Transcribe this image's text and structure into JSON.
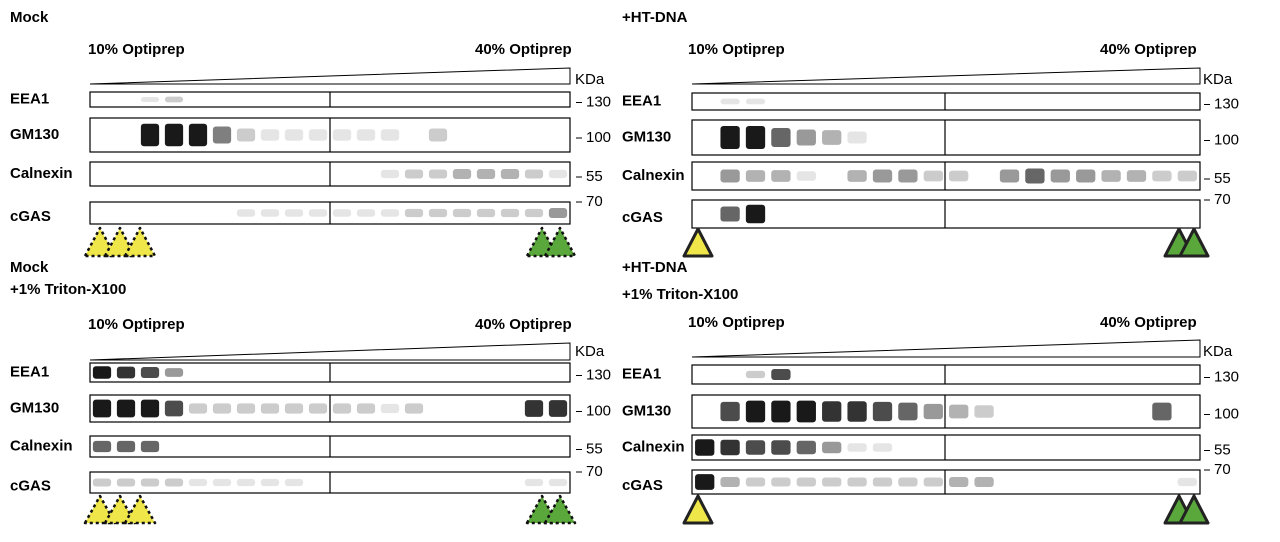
{
  "panels": [
    {
      "title": [
        "Mock"
      ],
      "low": "10% Optiprep",
      "high": "40% Optiprep",
      "unit": "KDa",
      "rows": [
        {
          "label": "EEA1",
          "marker": "130"
        },
        {
          "label": "GM130",
          "marker": "100"
        },
        {
          "label": "Calnexin",
          "marker": "55"
        },
        {
          "label": "cGAS",
          "marker": "70"
        }
      ]
    },
    {
      "title": [
        "+HT-DNA"
      ],
      "low": "10% Optiprep",
      "high": "40% Optiprep",
      "unit": "KDa",
      "rows": [
        {
          "label": "EEA1",
          "marker": "130"
        },
        {
          "label": "GM130",
          "marker": "100"
        },
        {
          "label": "Calnexin",
          "marker": "55"
        },
        {
          "label": "cGAS",
          "marker": "70"
        }
      ]
    },
    {
      "title": [
        "Mock",
        "+1% Triton-X100"
      ],
      "low": "10% Optiprep",
      "high": "40% Optiprep",
      "unit": "KDa",
      "rows": [
        {
          "label": "EEA1",
          "marker": "130"
        },
        {
          "label": "GM130",
          "marker": "100"
        },
        {
          "label": "Calnexin",
          "marker": "55"
        },
        {
          "label": "cGAS",
          "marker": "70"
        }
      ]
    },
    {
      "title": [
        "+HT-DNA",
        "+1% Triton-X100"
      ],
      "low": "10% Optiprep",
      "high": "40% Optiprep",
      "unit": "KDa",
      "rows": [
        {
          "label": "EEA1",
          "marker": "130"
        },
        {
          "label": "GM130",
          "marker": "100"
        },
        {
          "label": "Calnexin",
          "marker": "55"
        },
        {
          "label": "cGAS",
          "marker": "70"
        }
      ]
    }
  ]
}
